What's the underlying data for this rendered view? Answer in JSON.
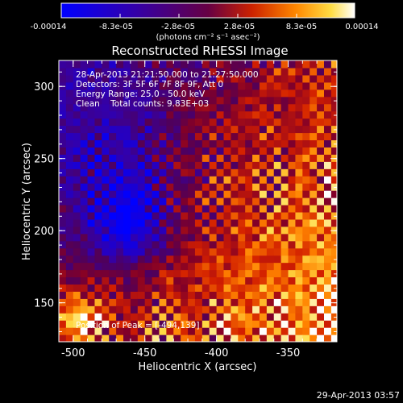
{
  "chart_data": {
    "type": "heatmap",
    "title": "Reconstructed RHESSI Image",
    "xlabel": "Heliocentric X (arcsec)",
    "ylabel": "Heliocentric Y (arcsec)",
    "xlim": [
      -510,
      -316
    ],
    "ylim": [
      123,
      318
    ],
    "x_ticks": [
      -500,
      -450,
      -400,
      -350
    ],
    "y_ticks": [
      150,
      200,
      250,
      300
    ],
    "colorbar": {
      "ticks": [
        "-0.00014",
        "-8.3e-05",
        "-2.8e-05",
        "2.8e-05",
        "8.3e-05",
        "0.00014"
      ],
      "unit_label": "(photons cm⁻² s⁻¹ asec⁻²)",
      "range": [
        -0.00014,
        0.00014
      ]
    },
    "annotations": [
      "28-Apr-2013 21:21:50.000 to 21:27:50.000",
      "Detectors: 3F 5F 6F 7F 8F 9F, Att 0",
      "Energy Range: 25.0 - 50.0 keV",
      "Clean    Total counts: 9.83E+03"
    ],
    "peak_label": "Position of Peak = [-494,139]",
    "peak_position": [
      -494,
      139
    ],
    "colors": {
      "low": "#0000ff",
      "mid_low": "#330088",
      "mid": "#990033",
      "high": "#ffaa00",
      "max": "#ffffff"
    }
  },
  "footer": {
    "date": "29-Apr-2013 03:57"
  }
}
